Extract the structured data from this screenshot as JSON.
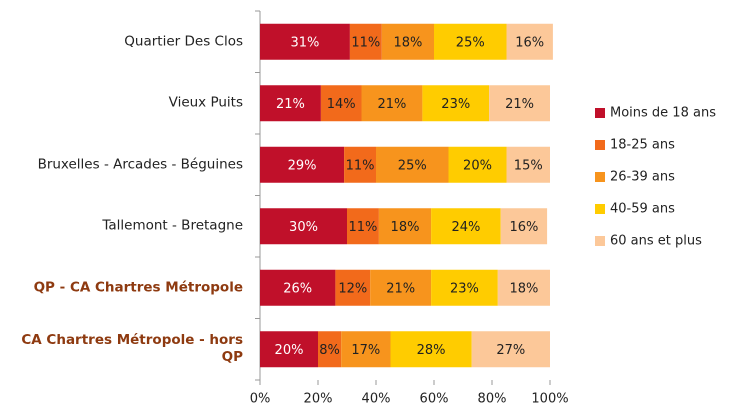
{
  "chart_data": {
    "type": "stacked-barh",
    "categories": [
      "Quartier Des Clos",
      "Vieux Puits",
      "Bruxelles - Arcades - Béguines",
      "Tallemont - Bretagne",
      "QP - CA Chartres Métropole",
      "CA Chartres Métropole - hors QP"
    ],
    "series": [
      {
        "name": "Moins de 18 ans",
        "color": "#c0102a",
        "label_color": "#ffffff",
        "values": [
          31,
          21,
          29,
          30,
          26,
          20
        ],
        "value_labels": [
          "31%",
          "21%",
          "29%",
          "30%",
          "26%",
          "20%"
        ]
      },
      {
        "name": "18-25 ans",
        "color": "#f26a1b",
        "label_color": "#222222",
        "values": [
          11,
          14,
          11,
          11,
          12,
          8
        ],
        "value_labels": [
          "11%",
          "14%",
          "11%",
          "11%",
          "12%",
          "8%"
        ]
      },
      {
        "name": "26-39 ans",
        "color": "#f7941d",
        "label_color": "#222222",
        "values": [
          18,
          21,
          25,
          18,
          21,
          17
        ],
        "value_labels": [
          "18%",
          "21%",
          "25%",
          "18%",
          "21%",
          "17%"
        ]
      },
      {
        "name": "40-59 ans",
        "color": "#ffcc00",
        "label_color": "#222222",
        "values": [
          25,
          23,
          20,
          24,
          23,
          28
        ],
        "value_labels": [
          "25%",
          "23%",
          "20%",
          "24%",
          "23%",
          "28%"
        ]
      },
      {
        "name": "60 ans et plus",
        "color": "#fcc899",
        "label_color": "#222222",
        "values": [
          16,
          21,
          15,
          16,
          18,
          27
        ],
        "value_labels": [
          "16%",
          "21%",
          "15%",
          "16%",
          "18%",
          "27%"
        ]
      }
    ],
    "xlim": [
      0,
      100
    ],
    "xticks": [
      {
        "value": 0,
        "label": "0%"
      },
      {
        "value": 20,
        "label": "20%"
      },
      {
        "value": 40,
        "label": "40%"
      },
      {
        "value": 60,
        "label": "60%"
      },
      {
        "value": 80,
        "label": "80%"
      },
      {
        "value": 100,
        "label": "100%"
      }
    ],
    "legend": "right"
  }
}
